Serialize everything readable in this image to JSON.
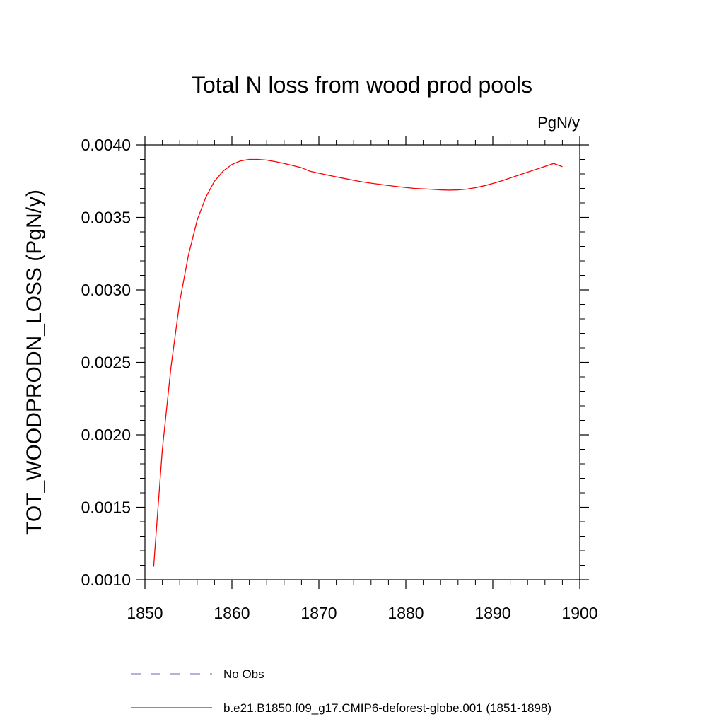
{
  "chart_data": {
    "type": "line",
    "title": "Total N loss from wood prod pools",
    "units_label": "PgN/y",
    "ylabel": "TOT_WOODPRODN_LOSS  (PgN/y)",
    "xlabel": "",
    "xlim": [
      1850,
      1900
    ],
    "ylim": [
      0.001,
      0.004
    ],
    "x_ticks": [
      1850,
      1860,
      1870,
      1880,
      1890,
      1900
    ],
    "x_tick_labels": [
      "1850",
      "1860",
      "1870",
      "1880",
      "1890",
      "1900"
    ],
    "y_ticks": [
      0.001,
      0.0015,
      0.002,
      0.0025,
      0.003,
      0.0035,
      0.004
    ],
    "y_tick_labels": [
      "0.0010",
      "0.0015",
      "0.0020",
      "0.0025",
      "0.0030",
      "0.0035",
      "0.0040"
    ],
    "series": [
      {
        "name": "b.e21.B1850.f09_g17.CMIP6-deforest-globe.001 (1851-1898)",
        "color": "#ff0000",
        "dash": "solid",
        "x": [
          1851,
          1852,
          1853,
          1854,
          1855,
          1856,
          1857,
          1858,
          1859,
          1860,
          1861,
          1862,
          1863,
          1864,
          1865,
          1866,
          1867,
          1868,
          1869,
          1870,
          1871,
          1872,
          1873,
          1874,
          1875,
          1876,
          1877,
          1878,
          1879,
          1880,
          1881,
          1882,
          1883,
          1884,
          1885,
          1886,
          1887,
          1888,
          1889,
          1890,
          1891,
          1892,
          1893,
          1894,
          1895,
          1896,
          1897,
          1898
        ],
        "y": [
          0.00109,
          0.0019,
          0.00247,
          0.00292,
          0.00324,
          0.00348,
          0.00364,
          0.00375,
          0.00382,
          0.003865,
          0.00389,
          0.0039,
          0.0039,
          0.003895,
          0.003885,
          0.003872,
          0.003858,
          0.003843,
          0.003818,
          0.003805,
          0.003792,
          0.00378,
          0.003768,
          0.003756,
          0.003745,
          0.003736,
          0.003728,
          0.00372,
          0.003713,
          0.003706,
          0.0037,
          0.003697,
          0.003694,
          0.00369,
          0.003688,
          0.00369,
          0.003695,
          0.003705,
          0.003718,
          0.003734,
          0.003752,
          0.003772,
          0.003792,
          0.003812,
          0.003832,
          0.003852,
          0.003872,
          0.00385
        ]
      },
      {
        "name": "No Obs",
        "color": "#8a7fd0",
        "dash": "dashed",
        "x": [],
        "y": []
      }
    ],
    "legend": {
      "placement": "bottom",
      "entries": [
        {
          "label": "No Obs",
          "color": "#8a7fd0",
          "dash": "dashed"
        },
        {
          "label": "b.e21.B1850.f09_g17.CMIP6-deforest-globe.001 (1851-1898)",
          "color": "#ff0000",
          "dash": "solid"
        }
      ]
    },
    "grid": false
  }
}
